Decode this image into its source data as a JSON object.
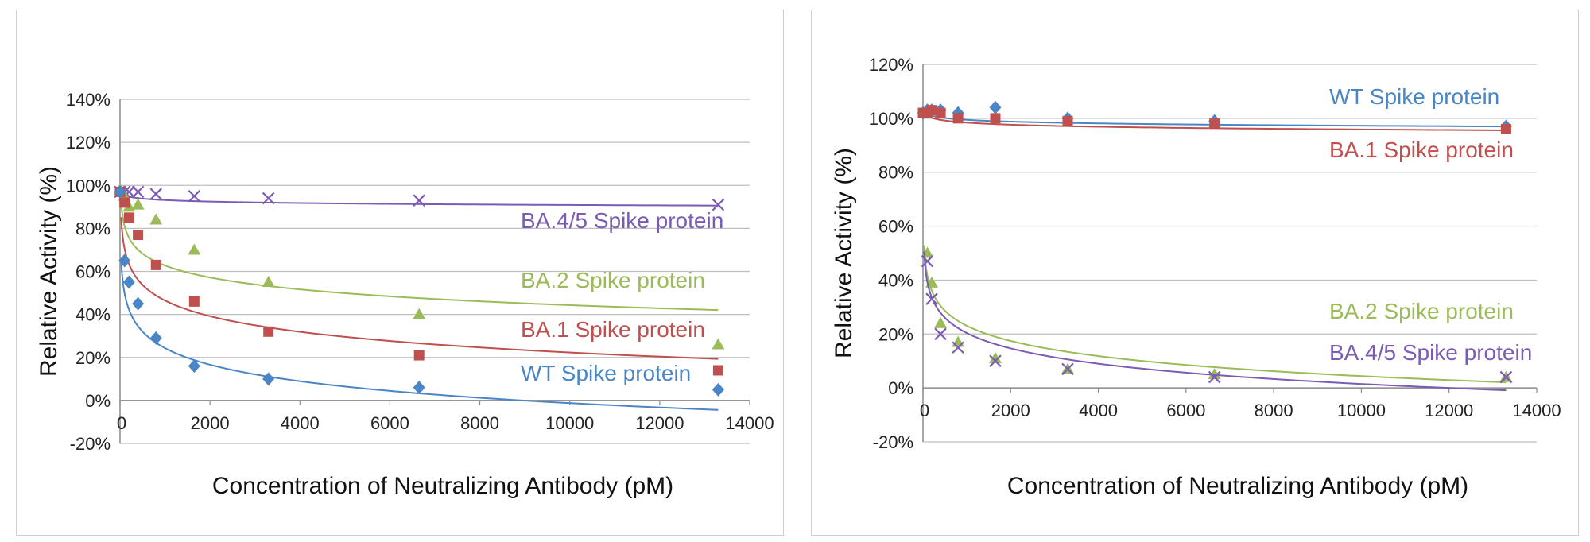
{
  "chart_data": [
    {
      "type": "scatter",
      "title": "",
      "xlabel": "Concentration of Neutralizing Antibody (pM)",
      "ylabel": "Relative Activity (%)",
      "xlim": [
        0,
        14000
      ],
      "ylim": [
        -20,
        140
      ],
      "x_ticks": [
        "0",
        "2000",
        "4000",
        "6000",
        "8000",
        "10000",
        "12000",
        "14000"
      ],
      "y_ticks": [
        "-20%",
        "0%",
        "20%",
        "40%",
        "60%",
        "80%",
        "100%",
        "120%",
        "140%"
      ],
      "grid": true,
      "series": [
        {
          "name": "BA.4/5 Spike protein",
          "label": "BA.4/5 Spike protein",
          "color": "#7b5bb6",
          "marker": "x",
          "x": [
            0,
            100,
            200,
            400,
            800,
            1650,
            3300,
            6650,
            13300
          ],
          "y": [
            97,
            97,
            97,
            97,
            96,
            95,
            94,
            93,
            91
          ],
          "fit": {
            "a": 100,
            "b": -0.99
          }
        },
        {
          "name": "BA.2 Spike protein",
          "label": "BA.2 Spike protein",
          "color": "#9bbb59",
          "marker": "triangle",
          "x": [
            0,
            100,
            200,
            400,
            800,
            1650,
            3300,
            6650,
            13300
          ],
          "y": [
            98,
            95,
            90,
            91,
            84,
            70,
            55,
            40,
            26
          ],
          "fit": {
            "a": 118,
            "b": -8.0
          }
        },
        {
          "name": "BA.1 Spike protein",
          "label": "BA.1 Spike protein",
          "color": "#c0504d",
          "marker": "square",
          "x": [
            0,
            100,
            200,
            400,
            800,
            1650,
            3300,
            6650,
            13300
          ],
          "y": [
            97,
            92,
            85,
            77,
            63,
            46,
            32,
            21,
            14
          ],
          "fit": {
            "a": 119,
            "b": -10.5
          }
        },
        {
          "name": "WT Spike protein",
          "label": "WT Spike protein",
          "color": "#4a86c5",
          "marker": "diamond",
          "x": [
            0,
            100,
            200,
            400,
            800,
            1650,
            3300,
            6650,
            13300
          ],
          "y": [
            97,
            65,
            55,
            45,
            29,
            16,
            10,
            6,
            5
          ],
          "fit": {
            "a": 101,
            "b": -11.1
          }
        }
      ]
    },
    {
      "type": "scatter",
      "title": "",
      "xlabel": "Concentration of Neutralizing Antibody (pM)",
      "ylabel": "Relative Activity (%)",
      "xlim": [
        0,
        14000
      ],
      "ylim": [
        -20,
        120
      ],
      "x_ticks": [
        "0",
        "2000",
        "4000",
        "6000",
        "8000",
        "10000",
        "12000",
        "14000"
      ],
      "y_ticks": [
        "-20%",
        "0%",
        "20%",
        "40%",
        "60%",
        "80%",
        "100%",
        "120%"
      ],
      "grid": true,
      "series": [
        {
          "name": "WT Spike protein",
          "label": "WT Spike protein",
          "color": "#4a86c5",
          "marker": "diamond",
          "x": [
            0,
            100,
            200,
            400,
            800,
            1650,
            3300,
            6650,
            13300
          ],
          "y": [
            102,
            103,
            103,
            103,
            102,
            104,
            100,
            99,
            97
          ],
          "fit": {
            "a": 106,
            "b": -0.95
          }
        },
        {
          "name": "BA.1 Spike protein",
          "label": "BA.1 Spike protein",
          "color": "#c0504d",
          "marker": "square",
          "x": [
            0,
            100,
            200,
            400,
            800,
            1650,
            3300,
            6650,
            13300
          ],
          "y": [
            102,
            102,
            103,
            102,
            100,
            100,
            99,
            98,
            96
          ],
          "fit": {
            "a": 106,
            "b": -1.1
          }
        },
        {
          "name": "BA.2 Spike protein",
          "label": "BA.2 Spike protein",
          "color": "#9bbb59",
          "marker": "triangle",
          "x": [
            100,
            200,
            400,
            800,
            1650,
            3300,
            6650,
            13300
          ],
          "y": [
            50,
            39,
            24,
            17,
            11,
            7,
            5,
            4
          ],
          "fit": {
            "a": 79,
            "b": -8.1
          }
        },
        {
          "name": "BA.4/5 Spike protein",
          "label": "BA.4/5 Spike protein",
          "color": "#7b5bb6",
          "marker": "x",
          "x": [
            100,
            200,
            400,
            800,
            1650,
            3300,
            6650,
            13300
          ],
          "y": [
            47,
            33,
            20,
            15,
            10,
            7,
            4,
            4
          ],
          "fit": {
            "a": 77,
            "b": -8.2
          }
        }
      ]
    }
  ]
}
